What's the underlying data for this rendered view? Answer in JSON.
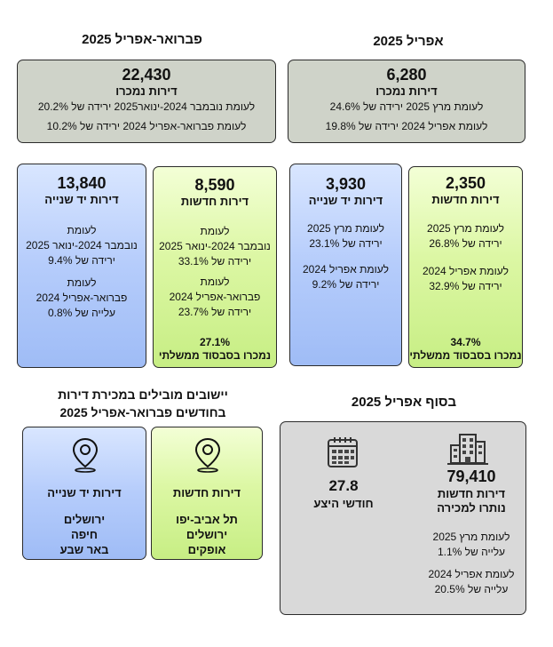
{
  "left_column": {
    "heading": "פברואר-אפריל 2025",
    "total": {
      "value": "22,430",
      "label": "דירות נמכרו",
      "line1": "לעומת נובמבר 2024-ינואר2025 ירידה של 20.2%",
      "line2": "לעומת פברואר-אפריל 2024 ירידה של 10.2%"
    },
    "secondhand": {
      "value": "13,840",
      "label": "דירות יד שנייה",
      "c1_l1": "לעומת",
      "c1_l2": "נובמבר 2024-ינואר 2025",
      "c1_l3": "ירידה של 9.4%",
      "c2_l1": "לעומת",
      "c2_l2": "פברואר-אפריל 2024",
      "c2_l3": "עלייה של 0.8%"
    },
    "new": {
      "value": "8,590",
      "label": "דירות חדשות",
      "c1_l1": "לעומת",
      "c1_l2": "נובמבר 2024-ינואר 2025",
      "c1_l3": "ירידה של 33.1%",
      "c2_l1": "לעומת",
      "c2_l2": "פברואר-אפריל 2024",
      "c2_l3": "ירידה של 23.7%",
      "subsidy_pct": "27.1%",
      "subsidy_label": "נמכרו בסבסוד ממשלתי"
    }
  },
  "right_column": {
    "heading": "אפריל 2025",
    "total": {
      "value": "6,280",
      "label": "דירות נמכרו",
      "line1": "לעומת מרץ 2025 ירידה של 24.6%",
      "line2": "לעומת אפריל 2024 ירידה של 19.8%"
    },
    "secondhand": {
      "value": "3,930",
      "label": "דירות יד שנייה",
      "c1_l1": "לעומת מרץ 2025",
      "c1_l2": "ירידה של 23.1%",
      "c2_l1": "לעומת אפריל 2024",
      "c2_l2": "ירידה של 9.2%"
    },
    "new": {
      "value": "2,350",
      "label": "דירות חדשות",
      "c1_l1": "לעומת מרץ 2025",
      "c1_l2": "ירידה של 26.8%",
      "c2_l1": "לעומת אפריל 2024",
      "c2_l2": "ירידה של 32.9%",
      "subsidy_pct": "34.7%",
      "subsidy_label": "נמכרו בסבסוד ממשלתי"
    }
  },
  "leading": {
    "heading_line1": "יישובים מובילים במכירת דירות",
    "heading_line2": "בחודשים פברואר-אפריל 2025",
    "secondhand": {
      "label": "דירות יד שנייה",
      "cities": [
        "ירושלים",
        "חיפה",
        "באר שבע"
      ]
    },
    "new": {
      "label": "דירות חדשות",
      "cities": [
        "תל אביב-יפו",
        "ירושלים",
        "אופקים"
      ]
    }
  },
  "end_april": {
    "heading": "בסוף אפריל 2025",
    "months": {
      "value": "27.8",
      "label": "חודשי היצע"
    },
    "unsold": {
      "value": "79,410",
      "label1": "דירות חדשות",
      "label2": "נותרו למכירה",
      "c1_l1": "לעומת מרץ 2025",
      "c1_l2": "עלייה של 1.1%",
      "c2_l1": "לעומת אפריל 2024",
      "c2_l2": "עלייה של 20.5%"
    }
  },
  "icons": [
    "map-pin-icon",
    "calendar-icon",
    "building-icon"
  ],
  "colors": {
    "gray": "#cfd3c9",
    "green": "#d4f39a",
    "blue": "#a9c3f8"
  }
}
